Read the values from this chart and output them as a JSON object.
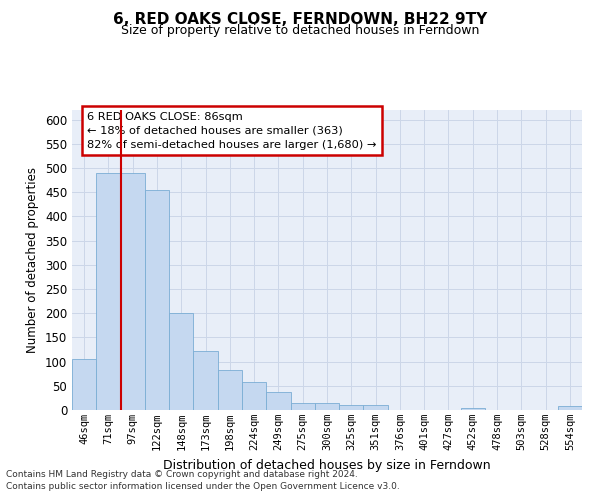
{
  "title": "6, RED OAKS CLOSE, FERNDOWN, BH22 9TY",
  "subtitle": "Size of property relative to detached houses in Ferndown",
  "xlabel": "Distribution of detached houses by size in Ferndown",
  "ylabel": "Number of detached properties",
  "bar_labels": [
    "46sqm",
    "71sqm",
    "97sqm",
    "122sqm",
    "148sqm",
    "173sqm",
    "198sqm",
    "224sqm",
    "249sqm",
    "275sqm",
    "300sqm",
    "325sqm",
    "351sqm",
    "376sqm",
    "401sqm",
    "427sqm",
    "452sqm",
    "478sqm",
    "503sqm",
    "528sqm",
    "554sqm"
  ],
  "bar_values": [
    105,
    490,
    490,
    455,
    200,
    122,
    83,
    57,
    37,
    15,
    15,
    10,
    10,
    0,
    0,
    0,
    5,
    0,
    0,
    0,
    8
  ],
  "bar_color": "#c5d8f0",
  "bar_edge_color": "#7aadd4",
  "red_line_x": 1.5,
  "annotation_title": "6 RED OAKS CLOSE: 86sqm",
  "annotation_line1": "← 18% of detached houses are smaller (363)",
  "annotation_line2": "82% of semi-detached houses are larger (1,680) →",
  "annotation_box_facecolor": "#ffffff",
  "annotation_box_edgecolor": "#cc0000",
  "red_line_color": "#cc0000",
  "grid_color": "#ccd6e8",
  "background_color": "#e8eef8",
  "ylim_max": 620,
  "yticks": [
    0,
    50,
    100,
    150,
    200,
    250,
    300,
    350,
    400,
    450,
    500,
    550,
    600
  ],
  "footnote1": "Contains HM Land Registry data © Crown copyright and database right 2024.",
  "footnote2": "Contains public sector information licensed under the Open Government Licence v3.0."
}
